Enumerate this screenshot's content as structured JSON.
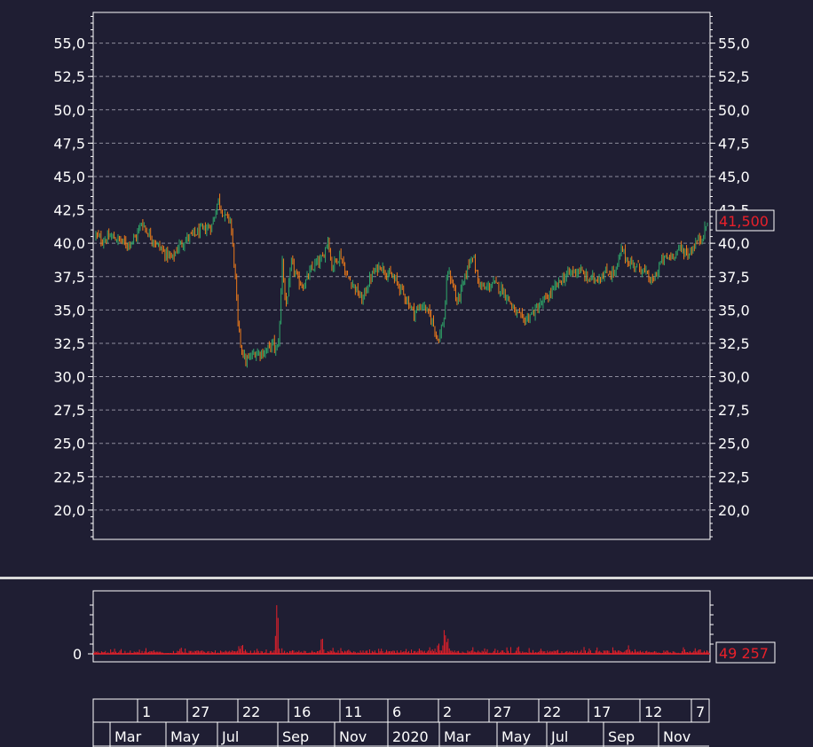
{
  "chart_data": {
    "type": "candlestick",
    "y_ticks": [
      "55,0",
      "52,5",
      "50,0",
      "47,5",
      "45,0",
      "42,5",
      "40,0",
      "37,5",
      "35,0",
      "32,5",
      "30,0",
      "27,5",
      "25,0",
      "22,5",
      "20,0"
    ],
    "y_tick_values": [
      55,
      52.5,
      50,
      47.5,
      45,
      42.5,
      40,
      37.5,
      35,
      32.5,
      30,
      27.5,
      25,
      22.5,
      20
    ],
    "ylim": [
      17.8,
      57.3
    ],
    "grid": true,
    "last_price_label": "41,500",
    "last_price": 41.5,
    "up_color": "#2fa86a",
    "down_color": "#f07c1a",
    "price_path": [
      [
        0,
        40.6
      ],
      [
        0.01,
        40.2
      ],
      [
        0.025,
        40.5
      ],
      [
        0.04,
        40.2
      ],
      [
        0.05,
        39.9
      ],
      [
        0.065,
        40.4
      ],
      [
        0.075,
        41.6
      ],
      [
        0.085,
        40.8
      ],
      [
        0.1,
        39.9
      ],
      [
        0.11,
        39.4
      ],
      [
        0.125,
        38.8
      ],
      [
        0.135,
        39.8
      ],
      [
        0.15,
        40.4
      ],
      [
        0.17,
        40.9
      ],
      [
        0.19,
        41.3
      ],
      [
        0.2,
        43.3
      ],
      [
        0.21,
        42.0
      ],
      [
        0.22,
        41.8
      ],
      [
        0.228,
        37.5
      ],
      [
        0.232,
        34.0
      ],
      [
        0.238,
        32.2
      ],
      [
        0.245,
        31.1
      ],
      [
        0.26,
        31.8
      ],
      [
        0.275,
        31.8
      ],
      [
        0.29,
        32.5
      ],
      [
        0.295,
        31.8
      ],
      [
        0.3,
        33.2
      ],
      [
        0.305,
        39.0
      ],
      [
        0.31,
        35.2
      ],
      [
        0.315,
        36.5
      ],
      [
        0.32,
        38.6
      ],
      [
        0.33,
        37.2
      ],
      [
        0.34,
        36.8
      ],
      [
        0.35,
        37.8
      ],
      [
        0.36,
        38.5
      ],
      [
        0.37,
        38.7
      ],
      [
        0.38,
        40.5
      ],
      [
        0.385,
        38.2
      ],
      [
        0.4,
        39.2
      ],
      [
        0.41,
        37.5
      ],
      [
        0.42,
        37.0
      ],
      [
        0.435,
        35.7
      ],
      [
        0.45,
        37.5
      ],
      [
        0.465,
        38.4
      ],
      [
        0.475,
        37.8
      ],
      [
        0.49,
        37.2
      ],
      [
        0.5,
        36.5
      ],
      [
        0.52,
        34.8
      ],
      [
        0.535,
        35.4
      ],
      [
        0.55,
        34.2
      ],
      [
        0.56,
        32.7
      ],
      [
        0.57,
        34.5
      ],
      [
        0.575,
        38.0
      ],
      [
        0.585,
        36.8
      ],
      [
        0.59,
        35.5
      ],
      [
        0.6,
        36.8
      ],
      [
        0.61,
        38.5
      ],
      [
        0.615,
        39.3
      ],
      [
        0.625,
        37.2
      ],
      [
        0.635,
        36.5
      ],
      [
        0.65,
        37.0
      ],
      [
        0.665,
        36.5
      ],
      [
        0.675,
        35.8
      ],
      [
        0.685,
        34.8
      ],
      [
        0.7,
        34.2
      ],
      [
        0.715,
        34.8
      ],
      [
        0.73,
        35.5
      ],
      [
        0.745,
        36.3
      ],
      [
        0.76,
        37.2
      ],
      [
        0.775,
        37.8
      ],
      [
        0.79,
        38.0
      ],
      [
        0.805,
        37.3
      ],
      [
        0.82,
        37.4
      ],
      [
        0.835,
        37.8
      ],
      [
        0.85,
        37.8
      ],
      [
        0.86,
        39.6
      ],
      [
        0.87,
        38.6
      ],
      [
        0.885,
        38.3
      ],
      [
        0.895,
        38.0
      ],
      [
        0.91,
        37.0
      ],
      [
        0.925,
        38.7
      ],
      [
        0.94,
        39.0
      ],
      [
        0.955,
        39.6
      ],
      [
        0.97,
        39.2
      ],
      [
        0.98,
        40.0
      ],
      [
        0.99,
        40.4
      ],
      [
        1.0,
        41.5
      ]
    ],
    "volume": {
      "zero_label": "0",
      "last_label": "49 257",
      "spikes": [
        [
          0.297,
          1.0
        ],
        [
          0.37,
          0.35
        ],
        [
          0.57,
          0.5
        ],
        [
          0.575,
          0.32
        ],
        [
          0.56,
          0.22
        ],
        [
          0.24,
          0.2
        ],
        [
          0.235,
          0.15
        ],
        [
          0.14,
          0.13
        ],
        [
          0.87,
          0.15
        ],
        [
          0.69,
          0.16
        ],
        [
          0.96,
          0.13
        ]
      ]
    },
    "x_ticks_top": [
      "1",
      "27",
      "22",
      "16",
      "11",
      "6",
      "2",
      "27",
      "22",
      "17",
      "12",
      "7"
    ],
    "x_ticks_bottom": [
      "Mar",
      "May",
      "Jul",
      "Sep",
      "Nov",
      "2020",
      "Mar",
      "May",
      "Jul",
      "Sep",
      "Nov"
    ]
  }
}
